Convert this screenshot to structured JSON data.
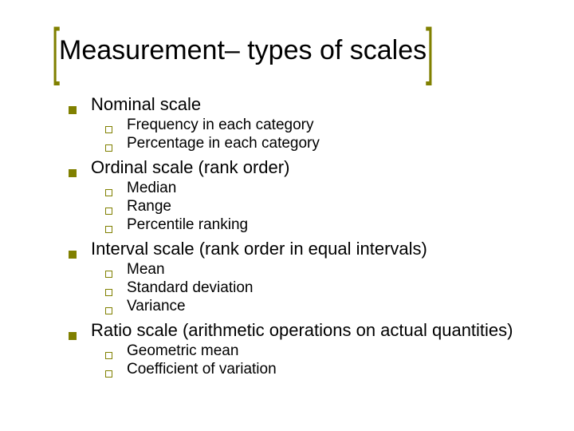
{
  "accent_color": "#808000",
  "title": "Measurement– types of scales",
  "sections": [
    {
      "label": "Nominal scale",
      "items": [
        "Frequency in each category",
        "Percentage in each category"
      ]
    },
    {
      "label": "Ordinal scale (rank order)",
      "items": [
        "Median",
        "Range",
        "Percentile ranking"
      ]
    },
    {
      "label": "Interval scale (rank order in equal intervals)",
      "items": [
        "Mean",
        "Standard deviation",
        "Variance"
      ]
    },
    {
      "label": "Ratio scale (arithmetic operations on actual quantities)",
      "items": [
        "Geometric mean",
        "Coefficient of variation"
      ]
    }
  ]
}
